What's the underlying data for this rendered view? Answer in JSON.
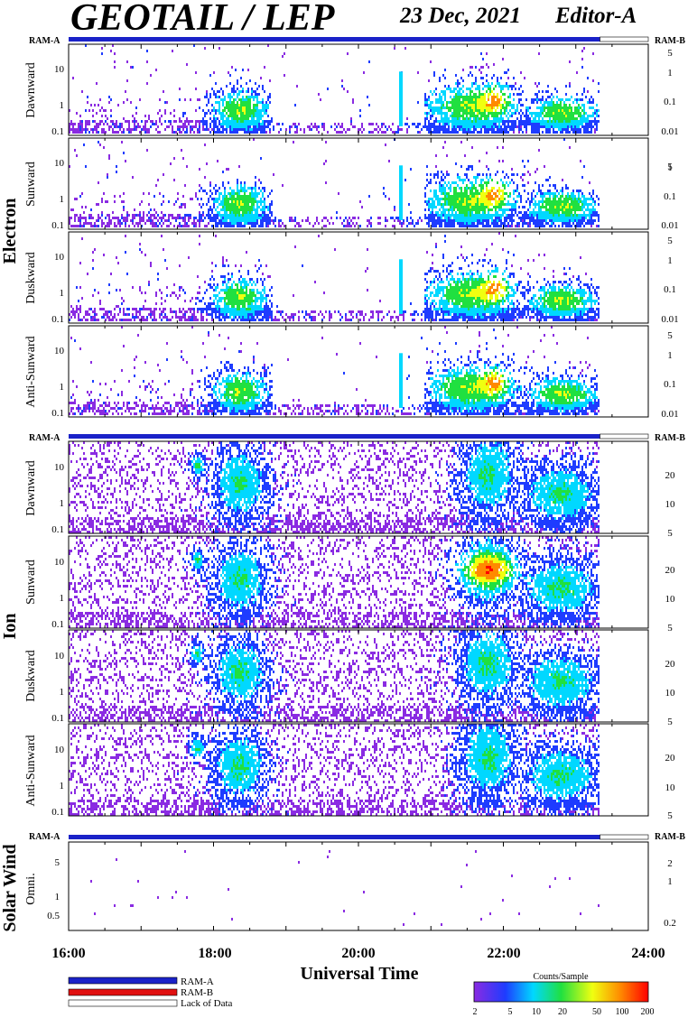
{
  "header": {
    "title": "GEOTAIL / LEP",
    "date": "23 Dec, 2021",
    "editor": "Editor-A"
  },
  "ram_labels": {
    "a": "RAM-A",
    "b": "RAM-B"
  },
  "groups": {
    "electron": "Electron",
    "ion": "Ion",
    "solar_wind": "Solar Wind"
  },
  "panel_labels": {
    "dawnward": "Dawnward",
    "sunward": "Sunward",
    "duskward": "Duskward",
    "anti_sunward": "Anti-Sunward",
    "omni": "Omni."
  },
  "left_ticks": {
    "electron_ion": [
      "10",
      "1",
      "0.1"
    ],
    "solar_wind": [
      "5",
      "1",
      "0.5"
    ]
  },
  "right_ticks": {
    "electron": [
      "5",
      "1",
      "0.1",
      "0.01"
    ],
    "ion": [
      "20",
      "10",
      "5"
    ],
    "solar_wind": [
      "2",
      "1",
      "0.2"
    ]
  },
  "time_axis": {
    "label": "Universal Time",
    "ticks": [
      "16:00",
      "18:00",
      "20:00",
      "22:00",
      "24:00"
    ]
  },
  "legend": {
    "ram_a": "RAM-A",
    "ram_b": "RAM-B",
    "lack": "Lack of Data",
    "colorbar_title": "Counts/Sample",
    "colorbar_ticks": [
      "2",
      "5",
      "10",
      "20",
      "50",
      "100",
      "200"
    ]
  },
  "colors": {
    "ram_a": "#1a22c8",
    "ram_b": "#e01010",
    "purple": "#8a2be2",
    "blue": "#1e3cff",
    "cyan": "#00d8ff",
    "green": "#20e040",
    "yellow": "#f0ff10",
    "orange": "#ff8a00",
    "red": "#ff0000"
  },
  "chart_data": {
    "type": "heatmap",
    "title": "GEOTAIL / LEP",
    "xlabel": "Universal Time",
    "x_ticks": [
      "16:00",
      "18:00",
      "20:00",
      "22:00",
      "24:00"
    ],
    "xlim": [
      "16:00",
      "24:00"
    ],
    "data_end": "23:20",
    "colorbar": {
      "label": "Counts/Sample",
      "range": [
        2,
        200
      ],
      "ticks": [
        2,
        5,
        10,
        20,
        50,
        100,
        200
      ],
      "scale": "log"
    },
    "electron": {
      "yscale": "log",
      "ylim": [
        0.08,
        40
      ],
      "right_ticks": [
        5,
        1,
        0.1,
        0.01
      ],
      "panels": [
        "Dawnward",
        "Sunward",
        "Duskward",
        "Anti-Sunward"
      ],
      "activity": [
        {
          "start": "16:00",
          "end": "18:00",
          "level": "low"
        },
        {
          "start": "18:00",
          "end": "18:45",
          "level": "medium",
          "peak": "cyan-green"
        },
        {
          "start": "18:45",
          "end": "20:45",
          "level": "sparse"
        },
        {
          "start": "21:00",
          "end": "22:05",
          "level": "high",
          "peak": "yellow-orange"
        },
        {
          "start": "22:30",
          "end": "23:20",
          "level": "medium",
          "peak": "cyan-green"
        }
      ]
    },
    "ion": {
      "yscale": "log",
      "ylim": [
        0.08,
        40
      ],
      "right_ticks": [
        20,
        10,
        5
      ],
      "panels": [
        "Dawnward",
        "Sunward",
        "Duskward",
        "Anti-Sunward"
      ],
      "activity": [
        {
          "start": "16:00",
          "end": "23:20",
          "level": "scattered"
        },
        {
          "start": "17:40",
          "end": "18:45",
          "level": "medium",
          "peak": "cyan"
        },
        {
          "start": "21:00",
          "end": "22:05",
          "level": "high",
          "peak": "orange"
        },
        {
          "start": "22:30",
          "end": "23:20",
          "level": "medium",
          "peak": "cyan"
        }
      ]
    },
    "solar_wind": {
      "yscale": "log",
      "ylim": [
        0.28,
        8
      ],
      "right_ticks": [
        2,
        1,
        0.2
      ],
      "panels": [
        "Omni."
      ],
      "activity": [
        {
          "start": "16:00",
          "end": "23:20",
          "level": "very sparse"
        }
      ]
    }
  }
}
